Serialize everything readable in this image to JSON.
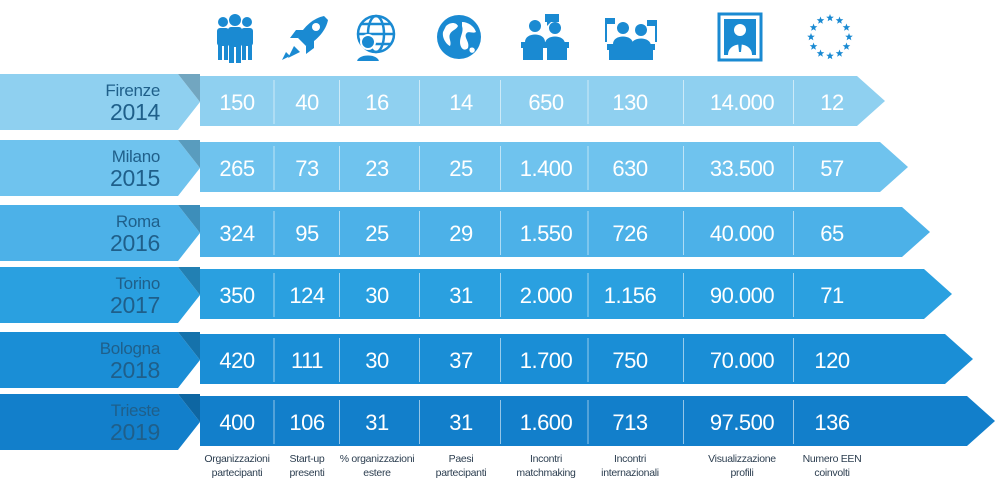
{
  "columns": [
    {
      "icon": "people-group-icon",
      "label_line1": "Organizzazioni",
      "label_line2": "partecipanti"
    },
    {
      "icon": "rocket-icon",
      "label_line1": "Start-up",
      "label_line2": "presenti"
    },
    {
      "icon": "globe-person-icon",
      "label_line1": "% organizzazioni",
      "label_line2": "estere"
    },
    {
      "icon": "globe-icon",
      "label_line1": "Paesi",
      "label_line2": "partecipanti"
    },
    {
      "icon": "meeting-icon",
      "label_line1": "Incontri",
      "label_line2": "matchmaking"
    },
    {
      "icon": "international-meeting-icon",
      "label_line1": "Incontri",
      "label_line2": "internazionali"
    },
    {
      "icon": "profile-card-icon",
      "label_line1": "Visualizzazione",
      "label_line2": "profili"
    },
    {
      "icon": "eu-stars-icon",
      "label_line1": "Numero EEN",
      "label_line2": "coinvolti"
    }
  ],
  "rows": [
    {
      "city": "Firenze",
      "year": "2014",
      "color": "#8fd0f0",
      "values": [
        "150",
        "40",
        "16",
        "14",
        "650",
        "130",
        "14.000",
        "12"
      ]
    },
    {
      "city": "Milano",
      "year": "2015",
      "color": "#6fc3ee",
      "values": [
        "265",
        "73",
        "23",
        "25",
        "1.400",
        "630",
        "33.500",
        "57"
      ]
    },
    {
      "city": "Roma",
      "year": "2016",
      "color": "#4cb1e8",
      "values": [
        "324",
        "95",
        "25",
        "29",
        "1.550",
        "726",
        "40.000",
        "65"
      ]
    },
    {
      "city": "Torino",
      "year": "2017",
      "color": "#2aa0e0",
      "values": [
        "350",
        "124",
        "30",
        "31",
        "2.000",
        "1.156",
        "90.000",
        "71"
      ]
    },
    {
      "city": "Bologna",
      "year": "2018",
      "color": "#1a8ed6",
      "values": [
        "420",
        "111",
        "30",
        "37",
        "1.700",
        "750",
        "70.000",
        "120"
      ]
    },
    {
      "city": "Trieste",
      "year": "2019",
      "color": "#127fcb",
      "values": [
        "400",
        "106",
        "31",
        "31",
        "1.600",
        "713",
        "97.500",
        "136"
      ]
    }
  ],
  "colors": {
    "icon": "#1a8ad2",
    "city_text": "#1f5f8a",
    "footer_text": "#2c3e50"
  }
}
